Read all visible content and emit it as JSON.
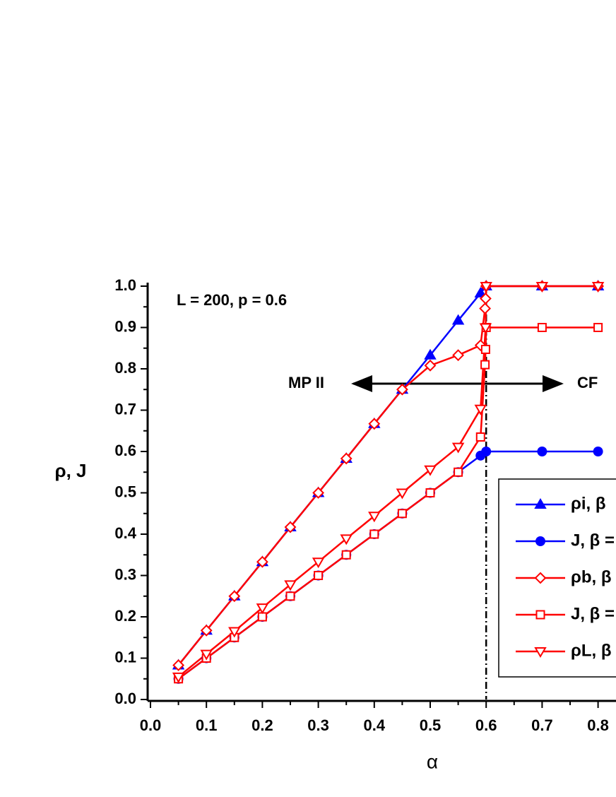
{
  "chart_data": {
    "type": "line",
    "annotations": [
      "L = 200, p = 0.6",
      "MP II",
      "CF"
    ],
    "xlabel": "α",
    "ylabel": "ρ, J",
    "xlim": [
      0,
      1
    ],
    "ylim": [
      0,
      1
    ],
    "xticks": [
      {
        "value": 0,
        "label": "0.0"
      },
      0.1,
      0.2,
      0.3,
      0.4,
      0.5,
      0.6,
      0.7,
      0.8
    ],
    "yticks": [
      {
        "value": 0,
        "label": "0.0"
      },
      0.1,
      0.2,
      0.3,
      0.4,
      0.5,
      0.6,
      0.7,
      0.8,
      0.9,
      {
        "value": 1,
        "label": "1.0"
      }
    ],
    "vline": 0.6,
    "series": [
      {
        "name": "ρi, β",
        "color": "#0000ff",
        "marker": "triangle-up",
        "filled": true,
        "x": [
          0.05,
          0.1,
          0.15,
          0.2,
          0.25,
          0.3,
          0.35,
          0.4,
          0.45,
          0.5,
          0.55,
          0.59,
          0.6,
          0.7,
          0.8
        ],
        "values": [
          0.083,
          0.167,
          0.25,
          0.333,
          0.417,
          0.5,
          0.583,
          0.667,
          0.75,
          0.833,
          0.917,
          0.983,
          1.0,
          1.0,
          1.0
        ]
      },
      {
        "name": "J, β =",
        "color": "#0000ff",
        "marker": "circle",
        "filled": true,
        "x": [
          0.05,
          0.1,
          0.15,
          0.2,
          0.25,
          0.3,
          0.35,
          0.4,
          0.45,
          0.5,
          0.55,
          0.59,
          0.6,
          0.7,
          0.8
        ],
        "values": [
          0.05,
          0.1,
          0.15,
          0.2,
          0.25,
          0.3,
          0.35,
          0.4,
          0.45,
          0.5,
          0.55,
          0.59,
          0.6,
          0.6,
          0.6
        ]
      },
      {
        "name": "ρb, β",
        "color": "#ff0000",
        "marker": "diamond",
        "filled": false,
        "x": [
          0.05,
          0.1,
          0.15,
          0.2,
          0.25,
          0.3,
          0.35,
          0.4,
          0.45,
          0.5,
          0.55,
          0.59,
          0.598,
          0.599,
          0.6,
          0.7,
          0.8
        ],
        "values": [
          0.083,
          0.167,
          0.25,
          0.333,
          0.417,
          0.5,
          0.583,
          0.667,
          0.75,
          0.808,
          0.833,
          0.857,
          0.946,
          0.97,
          1.0,
          1.0,
          1.0
        ]
      },
      {
        "name": "J, β =",
        "color": "#ff0000",
        "marker": "square",
        "filled": false,
        "x": [
          0.05,
          0.1,
          0.15,
          0.2,
          0.25,
          0.3,
          0.35,
          0.4,
          0.45,
          0.5,
          0.55,
          0.59,
          0.598,
          0.599,
          0.6,
          0.7,
          0.8
        ],
        "values": [
          0.05,
          0.1,
          0.15,
          0.2,
          0.25,
          0.3,
          0.35,
          0.4,
          0.45,
          0.5,
          0.55,
          0.635,
          0.81,
          0.847,
          0.9,
          0.9,
          0.9
        ]
      },
      {
        "name": "ρL, β",
        "color": "#ff0000",
        "marker": "triangle-down",
        "filled": false,
        "x": [
          0.05,
          0.1,
          0.15,
          0.2,
          0.25,
          0.3,
          0.35,
          0.4,
          0.45,
          0.5,
          0.55,
          0.59,
          0.599,
          0.6,
          0.7,
          0.8
        ],
        "values": [
          0.055,
          0.11,
          0.165,
          0.222,
          0.278,
          0.333,
          0.389,
          0.444,
          0.5,
          0.556,
          0.611,
          0.703,
          0.9,
          1.0,
          1.0,
          1.0
        ]
      }
    ]
  }
}
